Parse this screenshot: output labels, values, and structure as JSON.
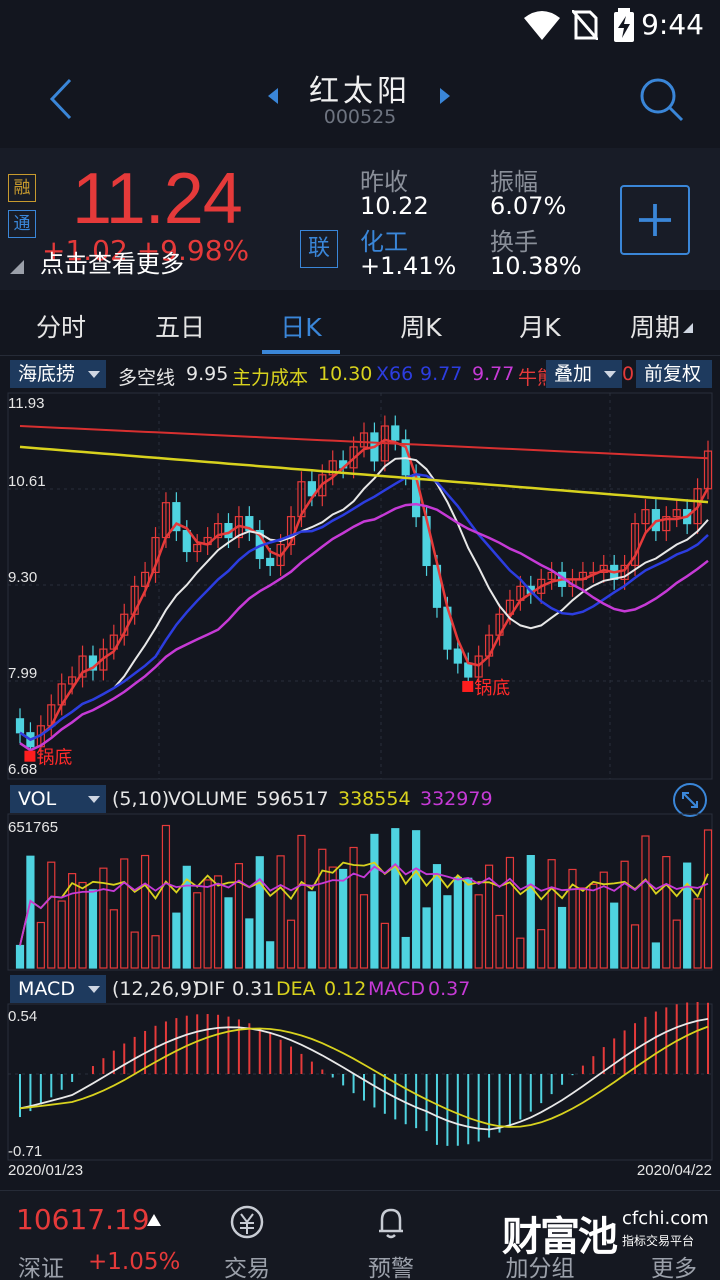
{
  "status": {
    "time": "9:44"
  },
  "header": {
    "name": "红太阳",
    "code": "000525"
  },
  "quote": {
    "price": "11.24",
    "change": "+1.02  +9.98%",
    "overlay_tip": "点击查看更多",
    "tag_rong": "融",
    "tag_tong": "通",
    "lian": "联",
    "prev_close_label": "昨收",
    "prev_close": "10.22",
    "amplitude_label": "振幅",
    "amplitude": "6.07%",
    "sector_label": "化工",
    "sector_change": "+1.41%",
    "turnover_label": "换手",
    "turnover": "10.38%"
  },
  "tabs": [
    "分时",
    "五日",
    "日K",
    "周K",
    "月K",
    "周期"
  ],
  "active_tab": "日K",
  "main_indicator": {
    "dropdown": "海底捞",
    "duokong_label": "多空线",
    "duokong": "9.95",
    "cost_label": "主力成本",
    "cost": "10.30",
    "x66_label": "X66",
    "x66": "9.77",
    "v4": "9.77",
    "niu_label": "牛熊",
    "overlay_btn": "叠加",
    "adjust_btn": "前复权"
  },
  "price_axis": [
    "11.93",
    "10.61",
    "9.30",
    "7.99",
    "6.68"
  ],
  "signal_label": "锅底",
  "vol_indicator": {
    "dropdown": "VOL",
    "params": "(5,10)",
    "volume_label": "VOLUME",
    "volume": "596517",
    "ma5": "338554",
    "ma10": "332979",
    "max_axis": "651765"
  },
  "macd_indicator": {
    "dropdown": "MACD",
    "params": "(12,26,9)",
    "dif_label": "DIF",
    "dif": "0.31",
    "dea_label": "DEA",
    "dea": "0.12",
    "macd_label": "MACD",
    "macd": "0.37",
    "axis_top": "0.54",
    "axis_bottom": "-0.71"
  },
  "dates": {
    "start": "2020/01/23",
    "end": "2020/04/22"
  },
  "bottom": {
    "index_value": "10617.19",
    "index_name": "深证",
    "index_change": "+1.05%",
    "nav": [
      "交易",
      "预警",
      "加分组",
      "更多"
    ],
    "watermark_cn": "财富池",
    "watermark_site": "cfchi.com",
    "watermark_sub": "指标交易平台"
  },
  "colors": {
    "up": "#e53a3a",
    "down": "#4fd3e0",
    "accent": "#3a86d8",
    "ma_white": "#e8e8e8",
    "ma_yellow": "#d8d21e",
    "ma_blue": "#2c3de0",
    "ma_magenta": "#c63ad6"
  }
}
